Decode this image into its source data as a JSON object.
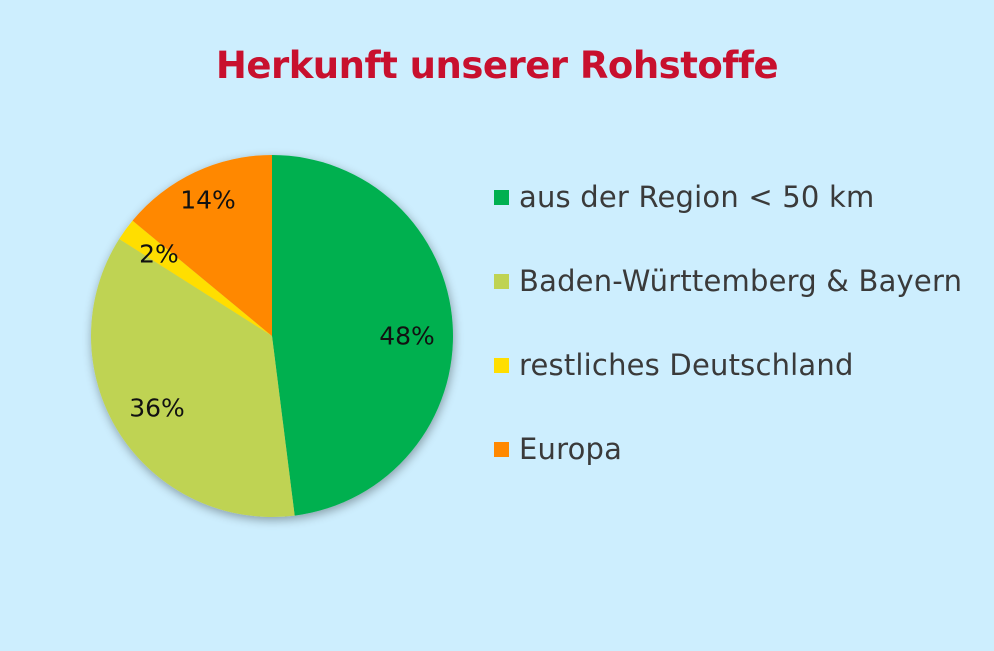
{
  "chart_data": {
    "type": "pie",
    "title": "Herkunft unserer Rohstoffe",
    "categories": [
      "aus der Region < 50 km",
      "Baden-Württemberg & Bayern",
      "restliches Deutschland",
      "Europa"
    ],
    "values": [
      48,
      36,
      2,
      14
    ],
    "data_labels": [
      "48%",
      "36%",
      "2%",
      "14%"
    ],
    "colors": [
      "#00b050",
      "#bfd353",
      "#ffde00",
      "#ff8800"
    ],
    "legend_position": "right"
  },
  "colors": {
    "background": "#cdeefe",
    "title": "#c8102e"
  }
}
